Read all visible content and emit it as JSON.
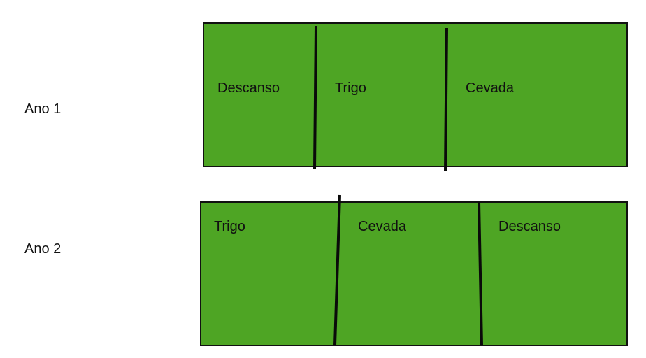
{
  "colors": {
    "field": "#4ea524",
    "border": "#111111",
    "divider": "#0a0a0a"
  },
  "rows": [
    {
      "label": "Ano 1",
      "plots": [
        "Descanso",
        "Trigo",
        "Cevada"
      ]
    },
    {
      "label": "Ano 2",
      "plots": [
        "Trigo",
        "Cevada",
        "Descanso"
      ]
    }
  ]
}
